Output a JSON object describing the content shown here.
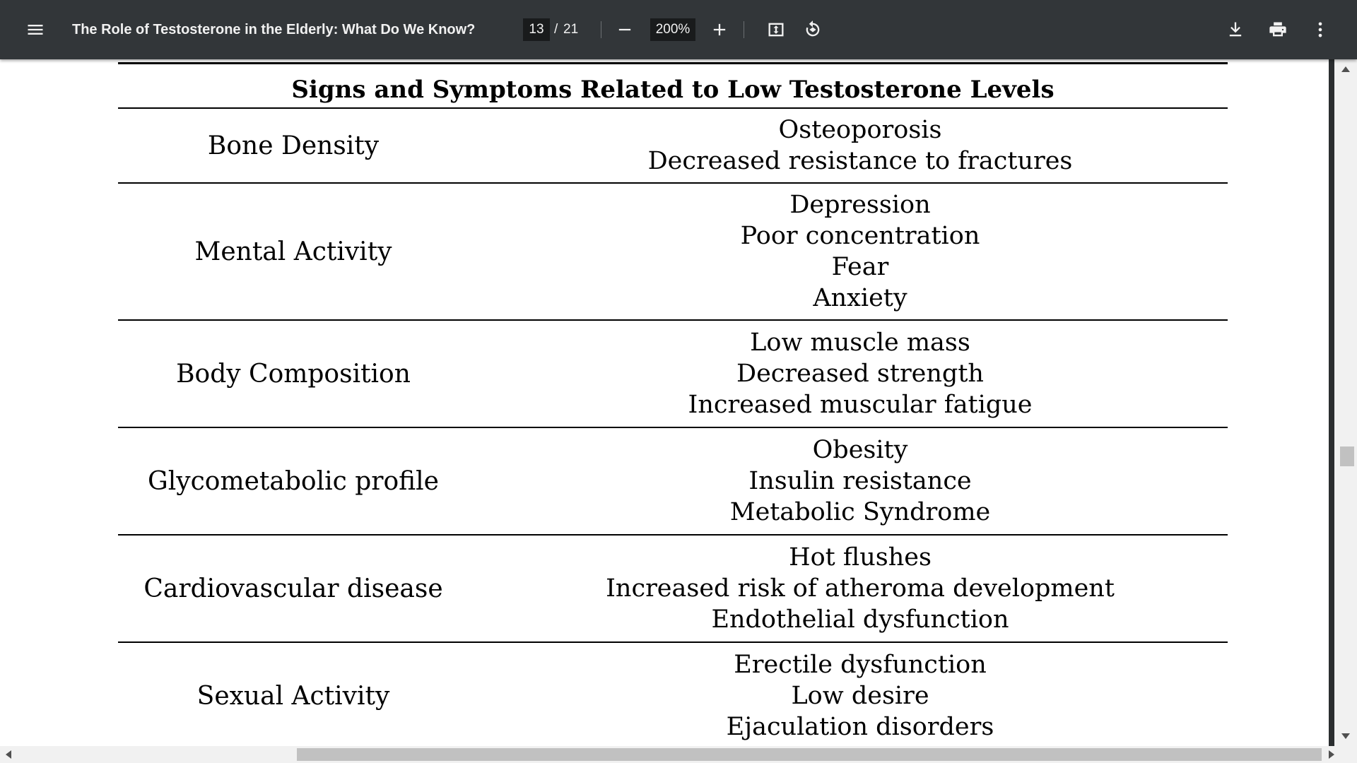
{
  "toolbar": {
    "title": "The Role of Testosterone in the Elderly: What Do We Know?",
    "page_current": "13",
    "page_separator": "/",
    "page_total": "21",
    "zoom": "200%",
    "icons": {
      "menu": "menu-icon",
      "zoom_out": "minus-icon",
      "zoom_in": "plus-icon",
      "fit": "fit-page-icon",
      "rotate": "rotate-icon",
      "download": "download-icon",
      "print": "print-icon",
      "more": "more-vert-icon"
    },
    "colors": {
      "bar": "#323639",
      "field": "#191b1c",
      "text": "#f1f1f1"
    }
  },
  "table": {
    "title": "Signs and Symptoms Related to Low Testosterone Levels",
    "rows": [
      {
        "label": "Bone Density",
        "items": [
          "Osteoporosis",
          "Decreased resistance to fractures"
        ]
      },
      {
        "label": "Mental Activity",
        "items": [
          "Depression",
          "Poor concentration",
          "Fear",
          "Anxiety"
        ]
      },
      {
        "label": "Body Composition",
        "items": [
          "Low muscle mass",
          "Decreased strength",
          "Increased muscular fatigue"
        ]
      },
      {
        "label": "Glycometabolic profile",
        "items": [
          "Obesity",
          "Insulin resistance",
          "Metabolic Syndrome"
        ]
      },
      {
        "label": "Cardiovascular disease",
        "items": [
          "Hot flushes",
          "Increased risk of atheroma development",
          "Endothelial dysfunction"
        ]
      },
      {
        "label": "Sexual Activity",
        "items": [
          "Erectile dysfunction",
          "Low desire",
          "Ejaculation disorders"
        ]
      }
    ]
  }
}
